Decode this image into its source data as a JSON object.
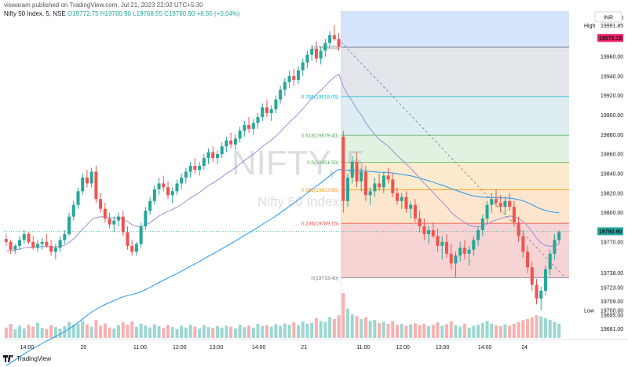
{
  "header": {
    "published_by": "viswaram published on TradingView.com, Jul 21, 2023 22:02 UTC+5:30",
    "symbol": "Nifty 50 Index, 5, NSE",
    "ohlc": "O19772.75  H19780.90  L19768.55  C19780.90  +8.55 (+0.04%)"
  },
  "watermark": {
    "ticker": "NIFTY, 5",
    "name": "Nifty 50 Index"
  },
  "footer": {
    "brand": "TradingView"
  },
  "colors": {
    "up": "#26a69a",
    "down": "#ef5350",
    "ema_long": "#2196f3",
    "ema_short": "#9c8fd4",
    "fib_0": "#f4cccc",
    "fib_236": "#fde2c4",
    "fib_382": "#fbe7c6",
    "fib_5": "#dcf0dc",
    "fib_618": "#d6f1ec",
    "fib_786": "#d7eaf0",
    "fib_1": "#dde1e6",
    "fib_top": "#d3e1fb"
  },
  "chart_data": {
    "type": "candlestick",
    "currency": "INR",
    "ylim": [
      19670,
      20010
    ],
    "y_ticks": [
      "20000.00",
      "19960.00",
      "19940.00",
      "19920.00",
      "19900.00",
      "19880.00",
      "19860.00",
      "19840.00",
      "19820.00",
      "19800.00",
      "19770.00",
      "19738.00",
      "19723.00",
      "19709.00",
      "19695.00",
      "19681.00"
    ],
    "x_ticks": [
      "14:00",
      "20",
      "11:00",
      "12:00",
      "13:00",
      "14:00",
      "21",
      "11:00",
      "12:00",
      "13:00",
      "14:00",
      "24"
    ],
    "price_labels": [
      {
        "label": "High",
        "text": "19991.85",
        "value": 19991.85
      },
      {
        "label": "",
        "text": "19979.15",
        "value": 19979.15,
        "color": "#e91e63"
      },
      {
        "label": "",
        "text": "19780.90",
        "value": 19780.9,
        "color": "#26a69a"
      },
      {
        "label": "Low",
        "text": "19700.00",
        "value": 19700.0
      }
    ],
    "fib_levels": [
      {
        "ratio_text": "1(19969.65)",
        "value": 19969.65,
        "color": "#787b86"
      },
      {
        "ratio_text": "0.786(19919.05)",
        "value": 19919.05,
        "color": "#00bcd4"
      },
      {
        "ratio_text": "0.618(19879.40)",
        "value": 19879.4,
        "color": "#4caf50"
      },
      {
        "ratio_text": "0.5(19851.50)",
        "value": 19851.5,
        "color": "#4caf50"
      },
      {
        "ratio_text": "0.382(19823.65)",
        "value": 19823.65,
        "color": "#ff9800"
      },
      {
        "ratio_text": "0.236(19789.15)",
        "value": 19789.15,
        "color": "#f44336"
      },
      {
        "ratio_text": "0(19733.40)",
        "value": 19733.4,
        "color": "#787b86"
      }
    ],
    "candles": [
      [
        19773,
        19778,
        19766,
        19770
      ],
      [
        19770,
        19772,
        19758,
        19762
      ],
      [
        19762,
        19768,
        19758,
        19766
      ],
      [
        19766,
        19776,
        19762,
        19772
      ],
      [
        19772,
        19782,
        19768,
        19778
      ],
      [
        19778,
        19780,
        19768,
        19770
      ],
      [
        19770,
        19776,
        19762,
        19764
      ],
      [
        19764,
        19772,
        19760,
        19768
      ],
      [
        19768,
        19774,
        19762,
        19770
      ],
      [
        19770,
        19778,
        19764,
        19766
      ],
      [
        19766,
        19772,
        19756,
        19760
      ],
      [
        19760,
        19768,
        19752,
        19764
      ],
      [
        19764,
        19776,
        19760,
        19772
      ],
      [
        19772,
        19782,
        19768,
        19778
      ],
      [
        19778,
        19800,
        19776,
        19796
      ],
      [
        19796,
        19812,
        19792,
        19808
      ],
      [
        19808,
        19826,
        19804,
        19822
      ],
      [
        19822,
        19840,
        19818,
        19836
      ],
      [
        19836,
        19844,
        19826,
        19830
      ],
      [
        19830,
        19846,
        19826,
        19842
      ],
      [
        19842,
        19848,
        19810,
        19814
      ],
      [
        19814,
        19820,
        19800,
        19804
      ],
      [
        19804,
        19810,
        19790,
        19794
      ],
      [
        19794,
        19800,
        19784,
        19788
      ],
      [
        19788,
        19796,
        19780,
        19792
      ],
      [
        19792,
        19800,
        19786,
        19796
      ],
      [
        19796,
        19802,
        19776,
        19780
      ],
      [
        19780,
        19786,
        19762,
        19766
      ],
      [
        19766,
        19772,
        19756,
        19760
      ],
      [
        19760,
        19770,
        19756,
        19768
      ],
      [
        19768,
        19790,
        19764,
        19786
      ],
      [
        19786,
        19806,
        19782,
        19802
      ],
      [
        19802,
        19816,
        19798,
        19812
      ],
      [
        19812,
        19828,
        19808,
        19824
      ],
      [
        19824,
        19836,
        19818,
        19830
      ],
      [
        19830,
        19838,
        19822,
        19826
      ],
      [
        19826,
        19832,
        19814,
        19818
      ],
      [
        19818,
        19826,
        19810,
        19822
      ],
      [
        19822,
        19834,
        19818,
        19830
      ],
      [
        19830,
        19840,
        19824,
        19836
      ],
      [
        19836,
        19846,
        19830,
        19842
      ],
      [
        19842,
        19852,
        19836,
        19848
      ],
      [
        19848,
        19856,
        19840,
        19844
      ],
      [
        19844,
        19852,
        19838,
        19848
      ],
      [
        19848,
        19860,
        19844,
        19856
      ],
      [
        19856,
        19866,
        19850,
        19862
      ],
      [
        19862,
        19868,
        19852,
        19856
      ],
      [
        19856,
        19864,
        19850,
        19860
      ],
      [
        19860,
        19872,
        19856,
        19868
      ],
      [
        19868,
        19878,
        19862,
        19874
      ],
      [
        19874,
        19882,
        19866,
        19870
      ],
      [
        19870,
        19880,
        19864,
        19876
      ],
      [
        19876,
        19888,
        19872,
        19884
      ],
      [
        19884,
        19894,
        19878,
        19890
      ],
      [
        19890,
        19898,
        19882,
        19886
      ],
      [
        19886,
        19896,
        19880,
        19892
      ],
      [
        19892,
        19902,
        19886,
        19898
      ],
      [
        19898,
        19912,
        19894,
        19908
      ],
      [
        19908,
        19916,
        19898,
        19902
      ],
      [
        19902,
        19910,
        19894,
        19906
      ],
      [
        19906,
        19920,
        19902,
        19916
      ],
      [
        19916,
        19930,
        19912,
        19926
      ],
      [
        19926,
        19938,
        19920,
        19934
      ],
      [
        19934,
        19946,
        19928,
        19940
      ],
      [
        19940,
        19948,
        19930,
        19936
      ],
      [
        19936,
        19950,
        19932,
        19946
      ],
      [
        19946,
        19958,
        19940,
        19954
      ],
      [
        19954,
        19966,
        19948,
        19962
      ],
      [
        19962,
        19972,
        19956,
        19968
      ],
      [
        19968,
        19976,
        19954,
        19958
      ],
      [
        19958,
        19970,
        19952,
        19966
      ],
      [
        19966,
        19978,
        19960,
        19974
      ],
      [
        19974,
        19986,
        19968,
        19982
      ],
      [
        19982,
        19992,
        19976,
        19978
      ],
      [
        19978,
        19984,
        19966,
        19970
      ],
      [
        19878,
        19884,
        19800,
        19812
      ],
      [
        19812,
        19840,
        19806,
        19836
      ],
      [
        19836,
        19858,
        19830,
        19852
      ],
      [
        19852,
        19862,
        19826,
        19832
      ],
      [
        19832,
        19846,
        19822,
        19842
      ],
      [
        19842,
        19848,
        19812,
        19818
      ],
      [
        19818,
        19826,
        19808,
        19822
      ],
      [
        19822,
        19836,
        19816,
        19830
      ],
      [
        19830,
        19840,
        19822,
        19826
      ],
      [
        19826,
        19842,
        19820,
        19838
      ],
      [
        19838,
        19846,
        19830,
        19834
      ],
      [
        19834,
        19840,
        19816,
        19820
      ],
      [
        19820,
        19826,
        19808,
        19812
      ],
      [
        19812,
        19820,
        19804,
        19816
      ],
      [
        19816,
        19822,
        19800,
        19804
      ],
      [
        19804,
        19812,
        19794,
        19808
      ],
      [
        19808,
        19814,
        19790,
        19794
      ],
      [
        19794,
        19802,
        19780,
        19786
      ],
      [
        19786,
        19794,
        19772,
        19778
      ],
      [
        19778,
        19786,
        19768,
        19782
      ],
      [
        19782,
        19790,
        19774,
        19776
      ],
      [
        19776,
        19784,
        19760,
        19766
      ],
      [
        19766,
        19776,
        19752,
        19770
      ],
      [
        19770,
        19778,
        19754,
        19758
      ],
      [
        19758,
        19768,
        19742,
        19748
      ],
      [
        19748,
        19760,
        19734,
        19756
      ],
      [
        19756,
        19770,
        19750,
        19764
      ],
      [
        19764,
        19772,
        19752,
        19758
      ],
      [
        19758,
        19766,
        19746,
        19762
      ],
      [
        19762,
        19776,
        19756,
        19772
      ],
      [
        19772,
        19786,
        19766,
        19782
      ],
      [
        19782,
        19798,
        19776,
        19794
      ],
      [
        19794,
        19812,
        19788,
        19808
      ],
      [
        19808,
        19820,
        19800,
        19814
      ],
      [
        19814,
        19824,
        19806,
        19810
      ],
      [
        19810,
        19818,
        19800,
        19806
      ],
      [
        19806,
        19816,
        19798,
        19812
      ],
      [
        19812,
        19820,
        19802,
        19806
      ],
      [
        19806,
        19812,
        19786,
        19790
      ],
      [
        19790,
        19796,
        19770,
        19776
      ],
      [
        19776,
        19782,
        19754,
        19760
      ],
      [
        19760,
        19766,
        19738,
        19744
      ],
      [
        19744,
        19750,
        19720,
        19726
      ],
      [
        19726,
        19732,
        19706,
        19712
      ],
      [
        19712,
        19724,
        19700,
        19720
      ],
      [
        19720,
        19746,
        19716,
        19742
      ],
      [
        19742,
        19762,
        19736,
        19758
      ],
      [
        19758,
        19778,
        19752,
        19772
      ],
      [
        19772,
        19782,
        19768,
        19780
      ]
    ],
    "volumes": [
      0.22,
      0.3,
      0.18,
      0.26,
      0.2,
      0.28,
      0.24,
      0.32,
      0.21,
      0.19,
      0.27,
      0.23,
      0.2,
      0.25,
      0.34,
      0.28,
      0.3,
      0.36,
      0.29,
      0.24,
      0.38,
      0.26,
      0.31,
      0.22,
      0.2,
      0.27,
      0.33,
      0.28,
      0.35,
      0.24,
      0.3,
      0.26,
      0.22,
      0.29,
      0.25,
      0.21,
      0.27,
      0.23,
      0.19,
      0.26,
      0.22,
      0.28,
      0.24,
      0.2,
      0.27,
      0.23,
      0.21,
      0.25,
      0.22,
      0.26,
      0.24,
      0.2,
      0.28,
      0.23,
      0.26,
      0.22,
      0.3,
      0.25,
      0.27,
      0.24,
      0.29,
      0.26,
      0.31,
      0.28,
      0.33,
      0.27,
      0.35,
      0.3,
      0.32,
      0.42,
      0.36,
      0.34,
      0.44,
      0.4,
      0.48,
      0.95,
      0.62,
      0.5,
      0.46,
      0.4,
      0.44,
      0.36,
      0.38,
      0.32,
      0.34,
      0.3,
      0.36,
      0.28,
      0.3,
      0.26,
      0.29,
      0.31,
      0.27,
      0.3,
      0.25,
      0.28,
      0.33,
      0.26,
      0.29,
      0.35,
      0.27,
      0.24,
      0.3,
      0.22,
      0.26,
      0.28,
      0.32,
      0.36,
      0.3,
      0.27,
      0.25,
      0.29,
      0.26,
      0.3,
      0.34,
      0.38,
      0.4,
      0.44,
      0.48,
      0.46,
      0.42,
      0.38,
      0.34,
      0.3
    ]
  }
}
